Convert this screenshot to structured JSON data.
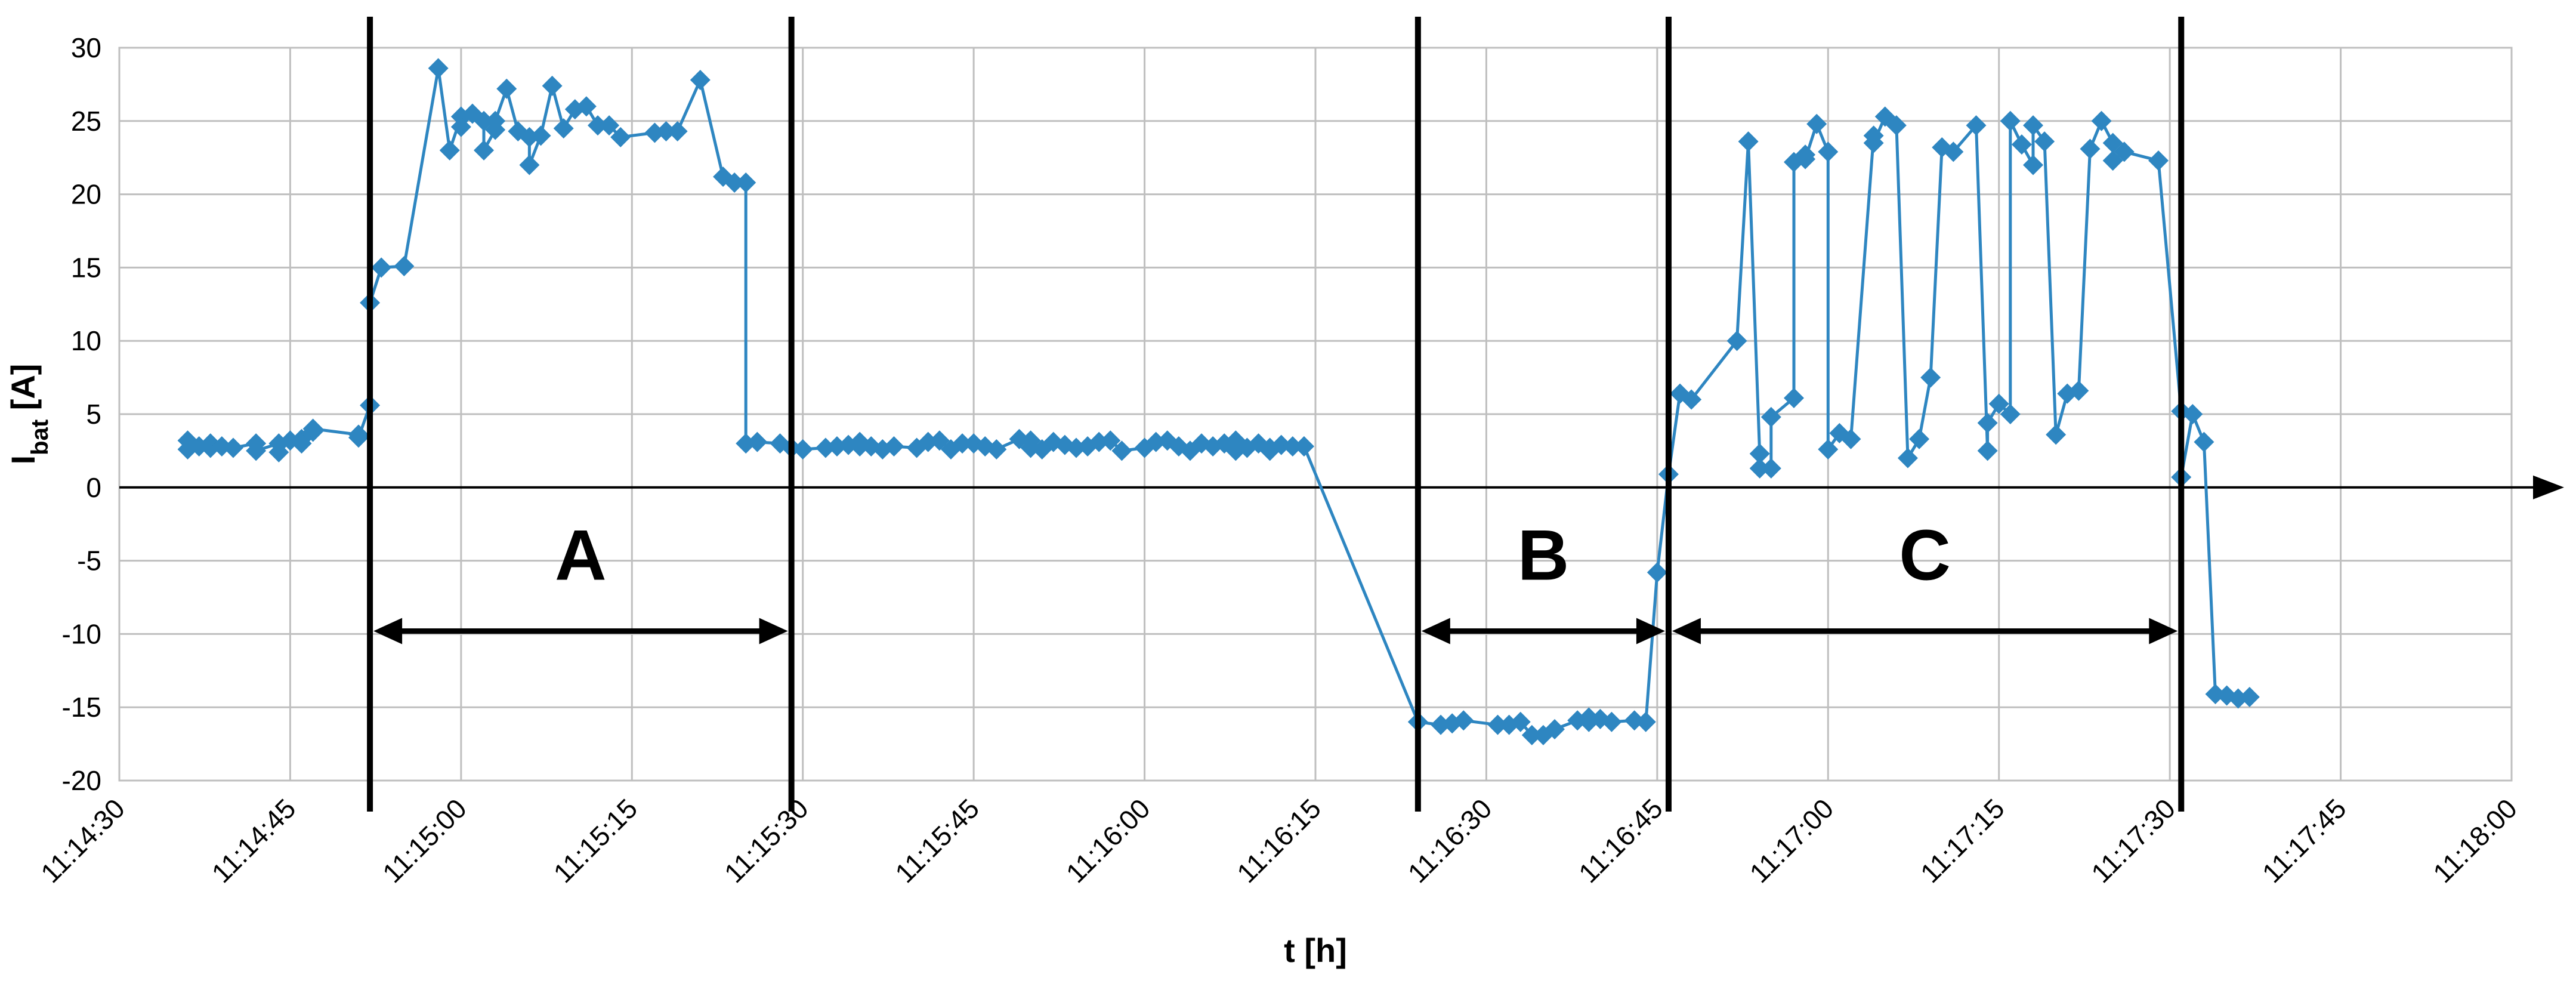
{
  "chart_data": {
    "type": "line",
    "xlabel": "t [h]",
    "ylabel_main": "I",
    "ylabel_sub": "bat",
    "ylabel_unit": " [A]",
    "x_ticks": [
      "11:14:30",
      "11:14:45",
      "11:15:00",
      "11:15:15",
      "11:15:30",
      "11:15:45",
      "11:16:00",
      "11:16:15",
      "11:16:30",
      "11:16:45",
      "11:17:00",
      "11:17:15",
      "11:17:30",
      "11:17:45",
      "11:18:00"
    ],
    "y_ticks": [
      "30",
      "25",
      "20",
      "15",
      "10",
      "5",
      "0",
      "-5",
      "-10",
      "-15",
      "-20"
    ],
    "xlim": [
      "11:14:30",
      "11:18:00"
    ],
    "ylim": [
      -20,
      30
    ],
    "grid": true,
    "series_color": "#2E86C1",
    "regions": [
      {
        "label": "A",
        "start": "11:14:52",
        "end": "11:15:29"
      },
      {
        "label": "B",
        "start": "11:16:24",
        "end": "11:16:46"
      },
      {
        "label": "C",
        "start": "11:16:46",
        "end": "11:17:31"
      }
    ],
    "series": [
      {
        "points": [
          [
            "11:14:36",
            3.2
          ],
          [
            "11:14:36",
            2.6
          ],
          [
            "11:14:37",
            2.8
          ],
          [
            "11:14:38",
            3.0
          ],
          [
            "11:14:38",
            2.7
          ],
          [
            "11:14:39",
            2.8
          ],
          [
            "11:14:40",
            2.7
          ],
          [
            "11:14:42",
            3.0
          ],
          [
            "11:14:42",
            2.5
          ],
          [
            "11:14:44",
            3.0
          ],
          [
            "11:14:44",
            2.4
          ],
          [
            "11:14:45",
            3.2
          ],
          [
            "11:14:46",
            3.3
          ],
          [
            "11:14:46",
            3.0
          ],
          [
            "11:14:47",
            3.8
          ],
          [
            "11:14:47",
            4.0
          ],
          [
            "11:14:51",
            3.6
          ],
          [
            "11:14:51",
            3.4
          ],
          [
            "11:14:52",
            5.6
          ],
          [
            "11:14:52",
            12.6
          ],
          [
            "11:14:53",
            15.0
          ],
          [
            "11:14:55",
            15.1
          ],
          [
            "11:14:58",
            28.6
          ],
          [
            "11:14:59",
            23.0
          ],
          [
            "11:15:00",
            25.3
          ],
          [
            "11:15:00",
            24.6
          ],
          [
            "11:15:01",
            25.5
          ],
          [
            "11:15:02",
            25.0
          ],
          [
            "11:15:02",
            23.0
          ],
          [
            "11:15:03",
            24.4
          ],
          [
            "11:15:03",
            25.0
          ],
          [
            "11:15:04",
            27.2
          ],
          [
            "11:15:05",
            24.3
          ],
          [
            "11:15:06",
            23.9
          ],
          [
            "11:15:06",
            22.0
          ],
          [
            "11:15:07",
            24.0
          ],
          [
            "11:15:08",
            27.4
          ],
          [
            "11:15:09",
            24.5
          ],
          [
            "11:15:10",
            25.8
          ],
          [
            "11:15:11",
            26.0
          ],
          [
            "11:15:12",
            24.7
          ],
          [
            "11:15:13",
            24.7
          ],
          [
            "11:15:14",
            23.9
          ],
          [
            "11:15:17",
            24.2
          ],
          [
            "11:15:18",
            24.3
          ],
          [
            "11:15:19",
            24.3
          ],
          [
            "11:15:21",
            27.8
          ],
          [
            "11:15:23",
            21.2
          ],
          [
            "11:15:24",
            20.8
          ],
          [
            "11:15:25",
            20.8
          ],
          [
            "11:15:25",
            3.0
          ],
          [
            "11:15:26",
            3.1
          ],
          [
            "11:15:28",
            3.0
          ],
          [
            "11:15:29",
            2.7
          ],
          [
            "11:15:30",
            2.6
          ],
          [
            "11:15:32",
            2.7
          ],
          [
            "11:15:33",
            2.8
          ],
          [
            "11:15:34",
            2.9
          ],
          [
            "11:15:35",
            2.8
          ],
          [
            "11:15:35",
            3.1
          ],
          [
            "11:15:36",
            2.8
          ],
          [
            "11:15:37",
            2.6
          ],
          [
            "11:15:38",
            2.8
          ],
          [
            "11:15:40",
            2.7
          ],
          [
            "11:15:41",
            3.1
          ],
          [
            "11:15:42",
            3.2
          ],
          [
            "11:15:43",
            2.6
          ],
          [
            "11:15:44",
            3.0
          ],
          [
            "11:15:45",
            3.0
          ],
          [
            "11:15:46",
            2.8
          ],
          [
            "11:15:47",
            2.6
          ],
          [
            "11:15:49",
            3.3
          ],
          [
            "11:15:50",
            3.2
          ],
          [
            "11:15:50",
            2.7
          ],
          [
            "11:15:51",
            2.6
          ],
          [
            "11:15:52",
            3.1
          ],
          [
            "11:15:53",
            2.9
          ],
          [
            "11:15:54",
            2.7
          ],
          [
            "11:15:55",
            2.8
          ],
          [
            "11:15:56",
            3.1
          ],
          [
            "11:15:57",
            3.2
          ],
          [
            "11:15:58",
            2.5
          ],
          [
            "11:16:00",
            2.7
          ],
          [
            "11:16:01",
            3.1
          ],
          [
            "11:16:02",
            3.2
          ],
          [
            "11:16:03",
            2.8
          ],
          [
            "11:16:04",
            2.5
          ],
          [
            "11:16:05",
            3.0
          ],
          [
            "11:16:06",
            2.8
          ],
          [
            "11:16:07",
            3.0
          ],
          [
            "11:16:08",
            3.2
          ],
          [
            "11:16:08",
            2.5
          ],
          [
            "11:16:09",
            2.7
          ],
          [
            "11:16:10",
            3.0
          ],
          [
            "11:16:11",
            2.7
          ],
          [
            "11:16:11",
            2.5
          ],
          [
            "11:16:12",
            2.9
          ],
          [
            "11:16:13",
            2.8
          ],
          [
            "11:16:14",
            2.8
          ],
          [
            "11:16:14",
            2.8
          ],
          [
            "11:16:24",
            -16.0
          ],
          [
            "11:16:26",
            -16.2
          ],
          [
            "11:16:27",
            -16.1
          ],
          [
            "11:16:28",
            -15.9
          ],
          [
            "11:16:31",
            -16.2
          ],
          [
            "11:16:32",
            -16.2
          ],
          [
            "11:16:33",
            -16.0
          ],
          [
            "11:16:34",
            -16.9
          ],
          [
            "11:16:35",
            -16.9
          ],
          [
            "11:16:36",
            -16.5
          ],
          [
            "11:16:38",
            -15.9
          ],
          [
            "11:16:39",
            -15.7
          ],
          [
            "11:16:39",
            -16.0
          ],
          [
            "11:16:40",
            -15.8
          ],
          [
            "11:16:41",
            -16.0
          ],
          [
            "11:16:43",
            -15.9
          ],
          [
            "11:16:44",
            -16.0
          ],
          [
            "11:16:45",
            -5.8
          ],
          [
            "11:16:46",
            0.9
          ],
          [
            "11:16:47",
            6.4
          ],
          [
            "11:16:48",
            6.0
          ],
          [
            "11:16:52",
            10.0
          ],
          [
            "11:16:53",
            23.6
          ],
          [
            "11:16:54",
            2.3
          ],
          [
            "11:16:54",
            1.3
          ],
          [
            "11:16:55",
            1.3
          ],
          [
            "11:16:55",
            4.8
          ],
          [
            "11:16:57",
            6.1
          ],
          [
            "11:16:57",
            22.2
          ],
          [
            "11:16:58",
            22.7
          ],
          [
            "11:16:58",
            22.4
          ],
          [
            "11:16:59",
            24.8
          ],
          [
            "11:17:00",
            22.9
          ],
          [
            "11:17:00",
            2.6
          ],
          [
            "11:17:01",
            3.7
          ],
          [
            "11:17:02",
            3.3
          ],
          [
            "11:17:04",
            24.0
          ],
          [
            "11:17:04",
            23.5
          ],
          [
            "11:17:05",
            25.3
          ],
          [
            "11:17:06",
            24.7
          ],
          [
            "11:17:07",
            2.0
          ],
          [
            "11:17:08",
            3.3
          ],
          [
            "11:17:09",
            7.5
          ],
          [
            "11:17:10",
            23.2
          ],
          [
            "11:17:11",
            22.9
          ],
          [
            "11:17:13",
            24.7
          ],
          [
            "11:17:14",
            2.5
          ],
          [
            "11:17:14",
            4.4
          ],
          [
            "11:17:15",
            5.7
          ],
          [
            "11:17:16",
            5.0
          ],
          [
            "11:17:16",
            25.0
          ],
          [
            "11:17:17",
            23.4
          ],
          [
            "11:17:18",
            22.0
          ],
          [
            "11:17:18",
            24.7
          ],
          [
            "11:17:19",
            23.6
          ],
          [
            "11:17:20",
            3.6
          ],
          [
            "11:17:21",
            6.4
          ],
          [
            "11:17:22",
            6.6
          ],
          [
            "11:17:23",
            23.1
          ],
          [
            "11:17:24",
            25.0
          ],
          [
            "11:17:25",
            23.5
          ],
          [
            "11:17:25",
            22.3
          ],
          [
            "11:17:26",
            22.9
          ],
          [
            "11:17:29",
            22.3
          ],
          [
            "11:17:31",
            5.2
          ],
          [
            "11:17:31",
            0.7
          ],
          [
            "11:17:32",
            5.0
          ],
          [
            "11:17:33",
            3.1
          ],
          [
            "11:17:34",
            -14.1
          ],
          [
            "11:17:35",
            -14.2
          ],
          [
            "11:17:36",
            -14.4
          ],
          [
            "11:17:37",
            -14.3
          ]
        ]
      }
    ]
  }
}
